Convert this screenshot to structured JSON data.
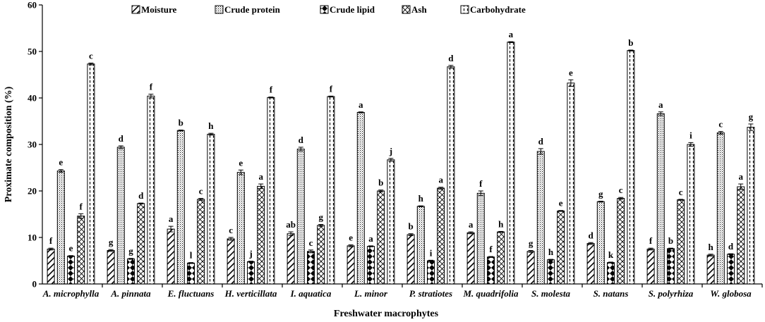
{
  "chart_data": {
    "type": "bar",
    "title": "",
    "xlabel": "Freshwater macrophytes",
    "ylabel": "Proximate composition (%)",
    "ylim": [
      0,
      60
    ],
    "yticks": [
      0,
      10,
      20,
      30,
      40,
      50,
      60
    ],
    "grid": false,
    "legend_position": "top",
    "categories": [
      "A. microphylla",
      "A. pinnata",
      "E. fluctuans",
      "H. verticillata",
      "I. aquatica",
      "L. minor",
      "P. stratiotes",
      "M. quadrifolia",
      "S. molesta",
      "S. natans",
      "S. polyrhiza",
      "W. globosa"
    ],
    "series": [
      {
        "name": "Moisture",
        "pattern": "diag-hatch",
        "values": [
          7.5,
          7.2,
          11.8,
          9.7,
          10.8,
          8.2,
          10.6,
          11.0,
          7.0,
          8.7,
          7.5,
          6.2
        ],
        "errors": [
          0.2,
          0.2,
          0.6,
          0.3,
          0.4,
          0.2,
          0.2,
          0.2,
          0.2,
          0.2,
          0.2,
          0.2
        ],
        "labels": [
          "f",
          "g",
          "a",
          "c",
          "ab",
          "e",
          "b",
          "a",
          "g",
          "d",
          "f",
          "h"
        ]
      },
      {
        "name": "Crude protein",
        "pattern": "dots",
        "values": [
          24.3,
          29.4,
          33.0,
          24.0,
          29.0,
          36.9,
          16.7,
          19.5,
          28.5,
          17.7,
          36.6,
          32.5
        ],
        "errors": [
          0.3,
          0.3,
          0.1,
          0.5,
          0.4,
          0.1,
          0.1,
          0.5,
          0.6,
          0.1,
          0.4,
          0.3
        ],
        "labels": [
          "e",
          "d",
          "b",
          "e",
          "d",
          "a",
          "h",
          "f",
          "d",
          "g",
          "a",
          "c"
        ]
      },
      {
        "name": "Crude lipid",
        "pattern": "diamonds",
        "values": [
          6.0,
          5.4,
          4.5,
          4.8,
          7.0,
          8.1,
          5.0,
          5.8,
          5.2,
          4.6,
          7.6,
          6.4
        ],
        "errors": [
          0.1,
          0.1,
          0.1,
          0.1,
          0.3,
          0.1,
          0.1,
          0.1,
          0.1,
          0.1,
          0.1,
          0.1
        ],
        "labels": [
          "e",
          "g",
          "l",
          "j",
          "c",
          "a",
          "i",
          "f",
          "h",
          "k",
          "b",
          "d"
        ]
      },
      {
        "name": "Ash",
        "pattern": "crosshatch",
        "values": [
          14.6,
          17.3,
          18.2,
          21.0,
          12.6,
          20.0,
          20.6,
          11.2,
          15.7,
          18.4,
          18.1,
          20.9
        ],
        "errors": [
          0.5,
          0.1,
          0.2,
          0.5,
          0.2,
          0.2,
          0.2,
          0.1,
          0.1,
          0.2,
          0.1,
          0.6
        ],
        "labels": [
          "f",
          "d",
          "c",
          "a",
          "g",
          "b",
          "a",
          "h",
          "e",
          "c",
          "c",
          "a"
        ]
      },
      {
        "name": "Carbohydrate",
        "pattern": "dashed-vertical",
        "values": [
          47.3,
          40.4,
          32.2,
          40.1,
          40.3,
          26.7,
          46.7,
          52.0,
          43.2,
          50.2,
          30.0,
          33.7
        ],
        "errors": [
          0.2,
          0.4,
          0.2,
          0.1,
          0.1,
          0.3,
          0.3,
          0.1,
          0.7,
          0.1,
          0.4,
          0.7
        ],
        "labels": [
          "c",
          "f",
          "h",
          "f",
          "f",
          "j",
          "d",
          "a",
          "e",
          "b",
          "i",
          "g"
        ]
      }
    ]
  }
}
